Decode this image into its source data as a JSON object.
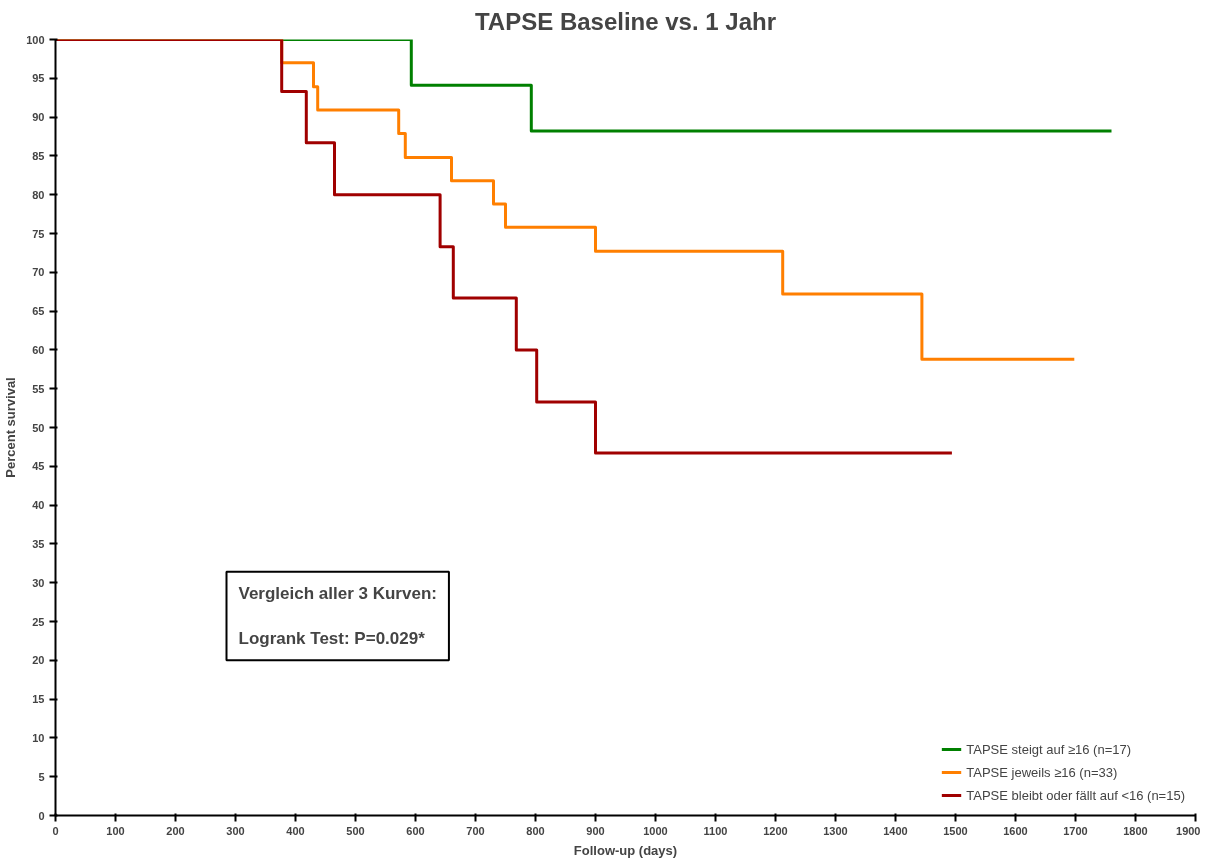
{
  "chart_data": {
    "type": "step",
    "title": "TAPSE Baseline vs. 1 Jahr",
    "xlabel": "Follow-up (days)",
    "ylabel": "Percent survival",
    "xlim": [
      0,
      1900
    ],
    "ylim": [
      0,
      100
    ],
    "xticks": [
      0,
      100,
      200,
      300,
      400,
      500,
      600,
      700,
      800,
      900,
      1000,
      1100,
      1200,
      1300,
      1400,
      1500,
      1600,
      1700,
      1800,
      1900
    ],
    "yticks": [
      0,
      5,
      10,
      15,
      20,
      25,
      30,
      35,
      40,
      45,
      50,
      55,
      60,
      65,
      70,
      75,
      80,
      85,
      90,
      95,
      100
    ],
    "grid": false,
    "legend": "bottom right",
    "line_style": "solid",
    "marker": "none",
    "series": [
      {
        "name": "TAPSE steigt auf ≥16 (n=17)",
        "color": "#008000",
        "x": [
          0,
          593,
          793,
          1760
        ],
        "values": [
          100,
          94.1,
          88.2,
          88.2
        ]
      },
      {
        "name": "TAPSE jeweils ≥16 (n=33)",
        "color": "#ff7f00",
        "x": [
          0,
          377,
          430,
          437,
          572,
          583,
          660,
          730,
          750,
          900,
          1212,
          1444,
          1698
        ],
        "values": [
          100,
          97.0,
          93.9,
          90.9,
          87.9,
          84.8,
          81.8,
          78.8,
          75.8,
          72.7,
          67.2,
          58.8,
          58.8
        ]
      },
      {
        "name": "TAPSE bleibt oder fällt auf <16 (n=15)",
        "color": "#a00000",
        "x": [
          0,
          377,
          418,
          465,
          641,
          663,
          768,
          802,
          900,
          1494
        ],
        "values": [
          100,
          93.3,
          86.7,
          80.0,
          73.3,
          66.7,
          60.0,
          53.3,
          46.7,
          46.7
        ]
      }
    ],
    "annotations": [
      "Vergleich aller 3 Kurven:",
      "Logrank Test: P=0.029*"
    ]
  }
}
